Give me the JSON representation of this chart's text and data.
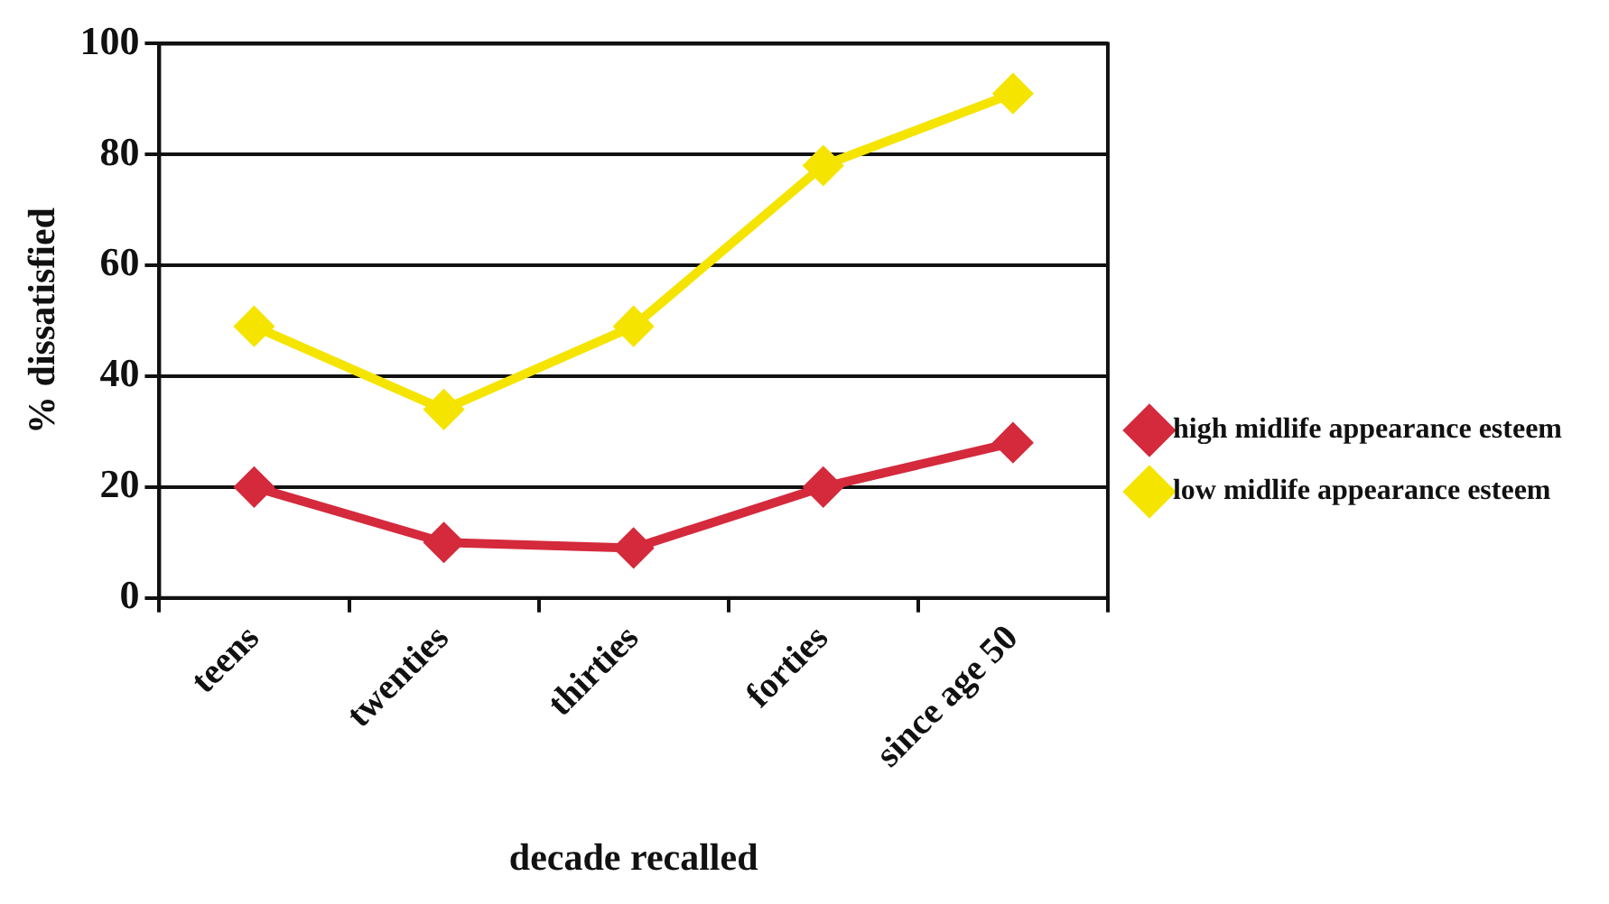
{
  "chart_data": {
    "type": "line",
    "xlabel": "decade recalled",
    "ylabel": "% dissatisfied",
    "categories": [
      "teens",
      "twenties",
      "thirties",
      "forties",
      "since age 50"
    ],
    "series": [
      {
        "name": "high midlife appearance esteem",
        "color": "#d42a3c",
        "values": [
          20,
          10,
          9,
          20,
          28
        ]
      },
      {
        "name": "low midlife appearance esteem",
        "color": "#f5e400",
        "values": [
          49,
          34,
          49,
          78,
          91
        ]
      }
    ],
    "ylim": [
      0,
      100
    ],
    "yticks": [
      0,
      20,
      40,
      60,
      80,
      100
    ],
    "grid": "y",
    "legend": "right",
    "marker": "diamond",
    "line_style": "solid"
  }
}
